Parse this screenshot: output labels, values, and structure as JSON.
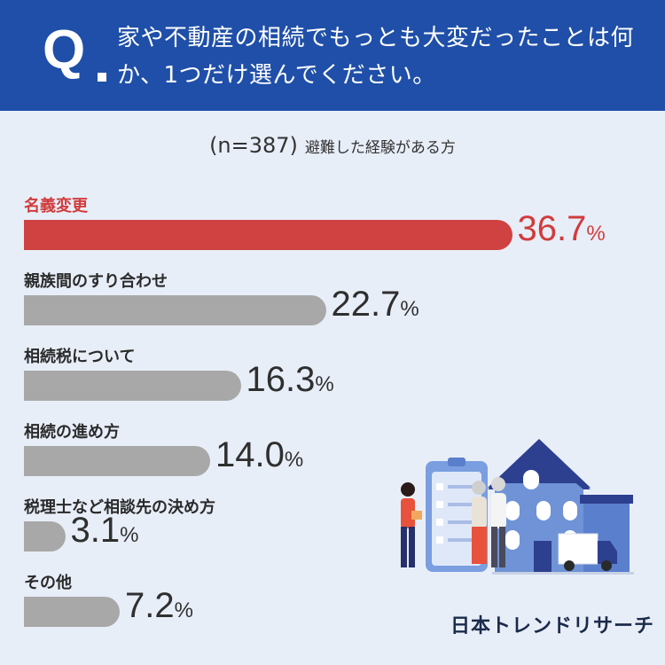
{
  "header": {
    "q": "Q",
    "question": "家や不動産の相続でもっとも大変だったことは何か、1つだけ選んでください。"
  },
  "subtitle": {
    "n": "(n=387)",
    "desc": "避難した経験がある方"
  },
  "chart_data": {
    "type": "bar",
    "orientation": "horizontal",
    "categories": [
      "名義変更",
      "親族間のすり合わせ",
      "相続税について",
      "相続の進め方",
      "税理士など相談先の決め方",
      "その他"
    ],
    "values": [
      36.7,
      22.7,
      16.3,
      14.0,
      3.1,
      7.2
    ],
    "value_labels": [
      "36.7",
      "22.7",
      "16.3",
      "14.0",
      "3.1",
      "7.2"
    ],
    "unit": "%",
    "highlight_index": 0,
    "colors": {
      "highlight": "#d04242",
      "default": "#a8a8a8",
      "highlight_text": "#d13c3c"
    }
  },
  "brand": "日本トレンドリサーチ"
}
